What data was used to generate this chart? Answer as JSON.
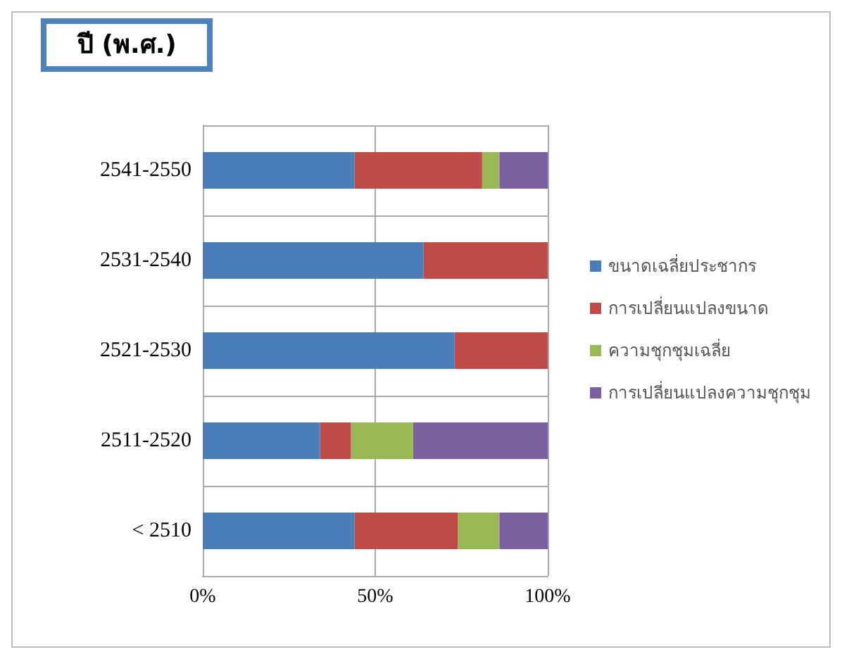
{
  "chart_data": {
    "type": "bar",
    "title": "ปี (พ.ศ.)",
    "orientation": "horizontal",
    "stacked": true,
    "categories": [
      "2541-2550",
      "2531-2540",
      "2521-2530",
      "2511-2520",
      "< 2510"
    ],
    "series": [
      {
        "name": "ขนาดเฉลี่ยประชากร",
        "color": "#4a7ebb",
        "values": [
          44,
          64,
          73,
          34,
          44
        ]
      },
      {
        "name": "การเปลี่ยนแปลงขนาด",
        "color": "#be4b48",
        "values": [
          37,
          36,
          27,
          9,
          30
        ]
      },
      {
        "name": "ความชุกชุมเฉลี่ย",
        "color": "#98b954",
        "values": [
          5,
          0,
          0,
          18,
          12
        ]
      },
      {
        "name": "การเปลี่ยนแปลงความชุกชุม",
        "color": "#7d60a0",
        "values": [
          14,
          0,
          0,
          39,
          14
        ]
      }
    ],
    "xlim": [
      0,
      100
    ],
    "xticks": [
      {
        "value": 0,
        "label": "0%"
      },
      {
        "value": 50,
        "label": "50%"
      },
      {
        "value": 100,
        "label": "100%"
      }
    ],
    "grid": true,
    "legend": "right"
  }
}
